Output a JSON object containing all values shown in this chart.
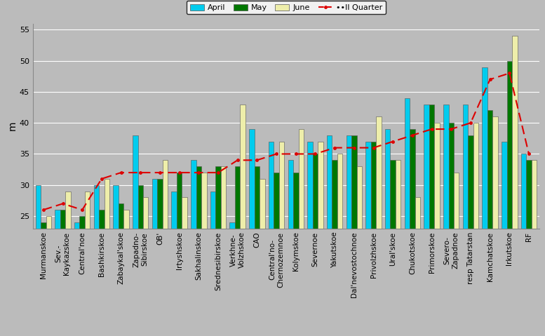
{
  "categories": [
    "Murmanskoe",
    "Sev.-\nKaykazskoe",
    "Central'noe",
    "Bashkirskoe",
    "Zabaykal'skoe",
    "Zapadno-\nSibirskoe",
    "OB'",
    "Irtyshskoe",
    "Sakhalinskoe",
    "Srednesibirskoe",
    "Verkhne-\nVolzhskoe",
    "CAO",
    "Central'no-\nChernozemnoe",
    "Kolymskoe",
    "Severnoe",
    "Yakutskoe",
    "Dal'nevostochnoe",
    "Privolzhskoe",
    "Ural'skoe",
    "Chukotskoe",
    "Primorskoe",
    "Severo-\nZapadnoe",
    "resp Tatarstan",
    "Kamchatskoe",
    "Irkutskoe",
    "RF"
  ],
  "april": [
    30,
    26,
    24,
    30,
    30,
    38,
    31,
    29,
    34,
    29,
    24,
    39,
    37,
    34,
    37,
    38,
    38,
    37,
    39,
    44,
    43,
    43,
    43,
    49,
    37,
    35
  ],
  "may": [
    24,
    26,
    25,
    26,
    27,
    30,
    31,
    32,
    33,
    33,
    33,
    33,
    32,
    32,
    35,
    34,
    38,
    37,
    34,
    39,
    43,
    40,
    38,
    42,
    50,
    34
  ],
  "june": [
    25,
    29,
    29,
    31,
    26,
    28,
    34,
    28,
    32,
    33,
    43,
    31,
    37,
    39,
    37,
    35,
    33,
    41,
    34,
    28,
    40,
    32,
    40,
    41,
    54,
    34
  ],
  "q2": [
    26,
    27,
    26,
    31,
    32,
    32,
    32,
    32,
    32,
    32,
    34,
    34,
    35,
    35,
    35,
    36,
    36,
    36,
    37,
    38,
    39,
    39,
    40,
    47,
    48,
    35
  ],
  "colors": {
    "april": "#00CCEE",
    "may": "#007700",
    "june": "#EEEEAA",
    "q2_line": "#DD0000"
  },
  "ylabel": "m",
  "ylim": [
    23,
    56
  ],
  "yticks": [
    25,
    30,
    35,
    40,
    45,
    50,
    55
  ],
  "background_color": "#BBBBBB",
  "plot_background": "#BBBBBB",
  "fig_width": 7.77,
  "fig_height": 4.79,
  "dpi": 100
}
